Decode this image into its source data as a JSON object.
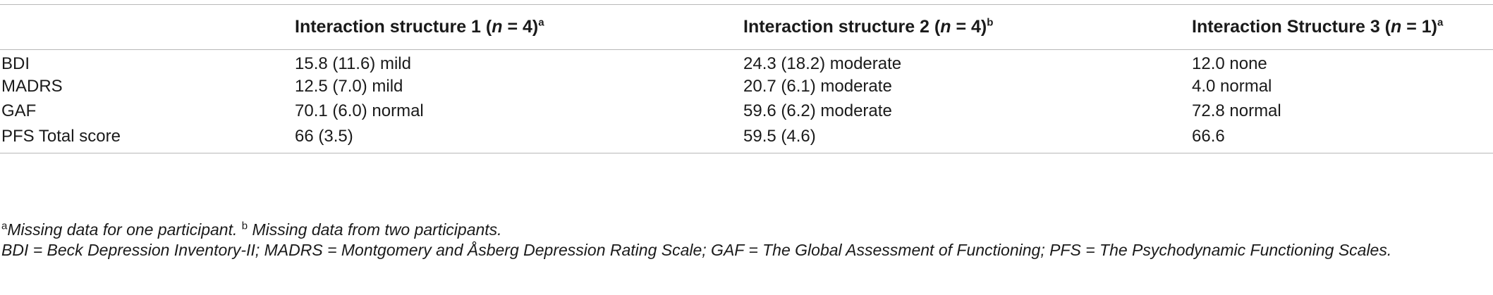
{
  "table": {
    "headers": [
      {
        "pre": "",
        "n": "",
        "post": "",
        "sup": ""
      },
      {
        "pre": "Interaction structure 1 (",
        "n": "n",
        "post": " = 4)",
        "sup": "a"
      },
      {
        "pre": "Interaction structure 2 (",
        "n": "n",
        "post": " = 4)",
        "sup": "b"
      },
      {
        "pre": "Interaction Structure 3 (",
        "n": "n",
        "post": " = 1)",
        "sup": "a"
      }
    ],
    "rows": [
      [
        "BDI",
        "15.8 (11.6) mild",
        "24.3 (18.2) moderate",
        "12.0 none"
      ],
      [
        "MADRS",
        "12.5 (7.0) mild",
        "20.7 (6.1) moderate",
        "4.0 normal"
      ],
      [
        "GAF",
        "70.1 (6.0) normal",
        "59.6 (6.2) moderate",
        "72.8 normal"
      ],
      [
        "PFS Total score",
        "66 (3.5)",
        "59.5 (4.6)",
        "66.6"
      ]
    ]
  },
  "footnotes": {
    "a_mark": "a",
    "a_text": "Missing data for one participant.",
    "b_mark": "b",
    "b_text": " Missing data from two participants.",
    "abbreviations": "BDI = Beck Depression Inventory-II; MADRS = Montgomery and Åsberg Depression Rating Scale; GAF = The Global Assessment of Functioning; PFS = The Psychodynamic Functioning Scales."
  }
}
